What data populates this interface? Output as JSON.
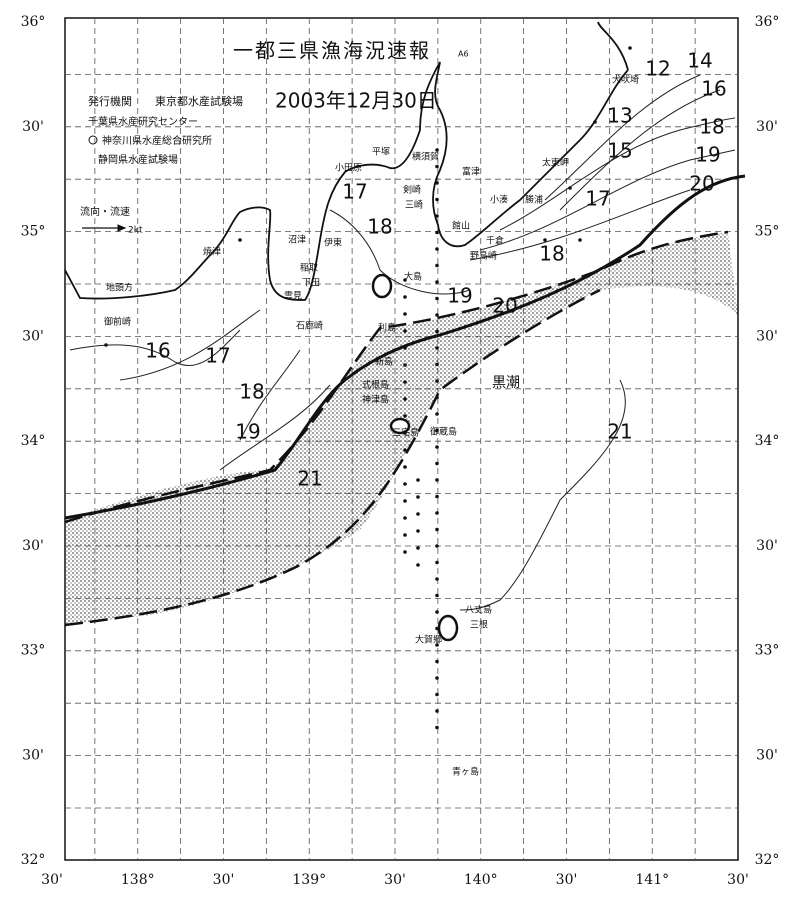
{
  "header": {
    "title": "一都三県漁海況速報",
    "code": "A6",
    "issuer_label": "発行機関",
    "issuers": [
      "東京都水産試験場",
      "千葉県水産研究センター",
      "神奈川県水産総合研究所",
      "静岡県水産試験場"
    ],
    "date": "2003年12月30日"
  },
  "legend": {
    "label": "流向・流速",
    "speed": "2kt"
  },
  "lat_labels": [
    "36°",
    "30'",
    "35°",
    "30'",
    "34°",
    "30'",
    "33°",
    "30'",
    "32°"
  ],
  "lon_labels": [
    "30'",
    "138°",
    "30'",
    "139°",
    "30'",
    "140°",
    "30'",
    "141°",
    "30'"
  ],
  "place_names": [
    "犬吠埼",
    "平塚",
    "横須賀",
    "富津",
    "小田原",
    "剣崎",
    "館山",
    "三崎",
    "小湊",
    "勝浦",
    "太東岬",
    "沼津",
    "焼津",
    "伊東",
    "稲取",
    "下田",
    "雲見",
    "石廊崎",
    "御前崎",
    "地頭方",
    "大島",
    "利島",
    "新島",
    "式根島",
    "神津島",
    "三宅島",
    "御蔵島",
    "野島崎",
    "千倉",
    "八丈島",
    "三根",
    "大賀郷",
    "青ヶ島",
    "黒潮"
  ],
  "isotherm_labels": [
    "12",
    "14",
    "16",
    "13",
    "18",
    "15",
    "19",
    "17",
    "20",
    "18",
    "17",
    "18",
    "19",
    "20",
    "16",
    "17",
    "18",
    "19",
    "21",
    "21"
  ]
}
